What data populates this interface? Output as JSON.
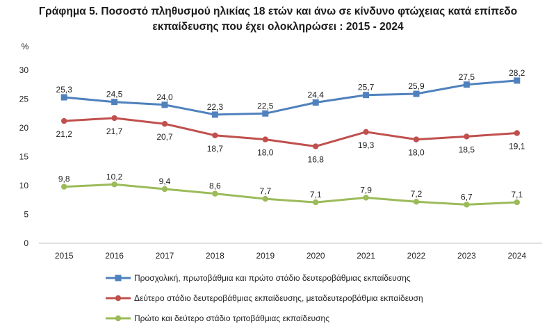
{
  "chart_data": {
    "type": "line",
    "title_line1": "Γράφημα 5. Ποσοστό πληθυσμού ηλικίας 18 ετών και άνω σε κίνδυνο φτώχειας κατά επίπεδο",
    "title_line2": "εκπαίδευσης που έχει ολοκληρώσει : 2015 - 2024",
    "ylabel": "%",
    "ylim": [
      0,
      30
    ],
    "yticks": [
      0,
      5,
      10,
      15,
      20,
      25,
      30
    ],
    "categories": [
      "2015",
      "2016",
      "2017",
      "2018",
      "2019",
      "2020",
      "2021",
      "2022",
      "2023",
      "2024"
    ],
    "series": [
      {
        "name": "Προσχολική, πρωτοβάθμια και πρώτο στάδιο δευτεροβάθμιας εκπαίδευσης",
        "color": "#4f81bd",
        "marker": "square",
        "values": [
          25.3,
          24.5,
          24.0,
          22.3,
          22.5,
          24.4,
          25.7,
          25.9,
          27.5,
          28.2
        ],
        "labels": [
          "25,3",
          "24,5",
          "24,0",
          "22,3",
          "22,5",
          "24,4",
          "25,7",
          "25,9",
          "27,5",
          "28,2"
        ],
        "label_position": "above"
      },
      {
        "name": "Δεύτερο στάδιο δευτεροβάθμιας εκπαίδευσης, μεταδευτεροβάθμια εκπαίδευση",
        "color": "#c0504d",
        "marker": "circle",
        "values": [
          21.2,
          21.7,
          20.7,
          18.7,
          18.0,
          16.8,
          19.3,
          18.0,
          18.5,
          19.1
        ],
        "labels": [
          "21,2",
          "21,7",
          "20,7",
          "18,7",
          "18,0",
          "16,8",
          "19,3",
          "18,0",
          "18,5",
          "19,1"
        ],
        "label_position": "below"
      },
      {
        "name": "Πρώτο και δεύτερο στάδιο τριτοβάθμιας εκπαίδευσης",
        "color": "#9bbb59",
        "marker": "circle",
        "values": [
          9.8,
          10.2,
          9.4,
          8.6,
          7.7,
          7.1,
          7.9,
          7.2,
          6.7,
          7.1
        ],
        "labels": [
          "9,8",
          "10,2",
          "9,4",
          "8,6",
          "7,7",
          "7,1",
          "7,9",
          "7,2",
          "6,7",
          "7,1"
        ],
        "label_position": "above"
      }
    ],
    "grid": false,
    "legend_position": "bottom"
  }
}
